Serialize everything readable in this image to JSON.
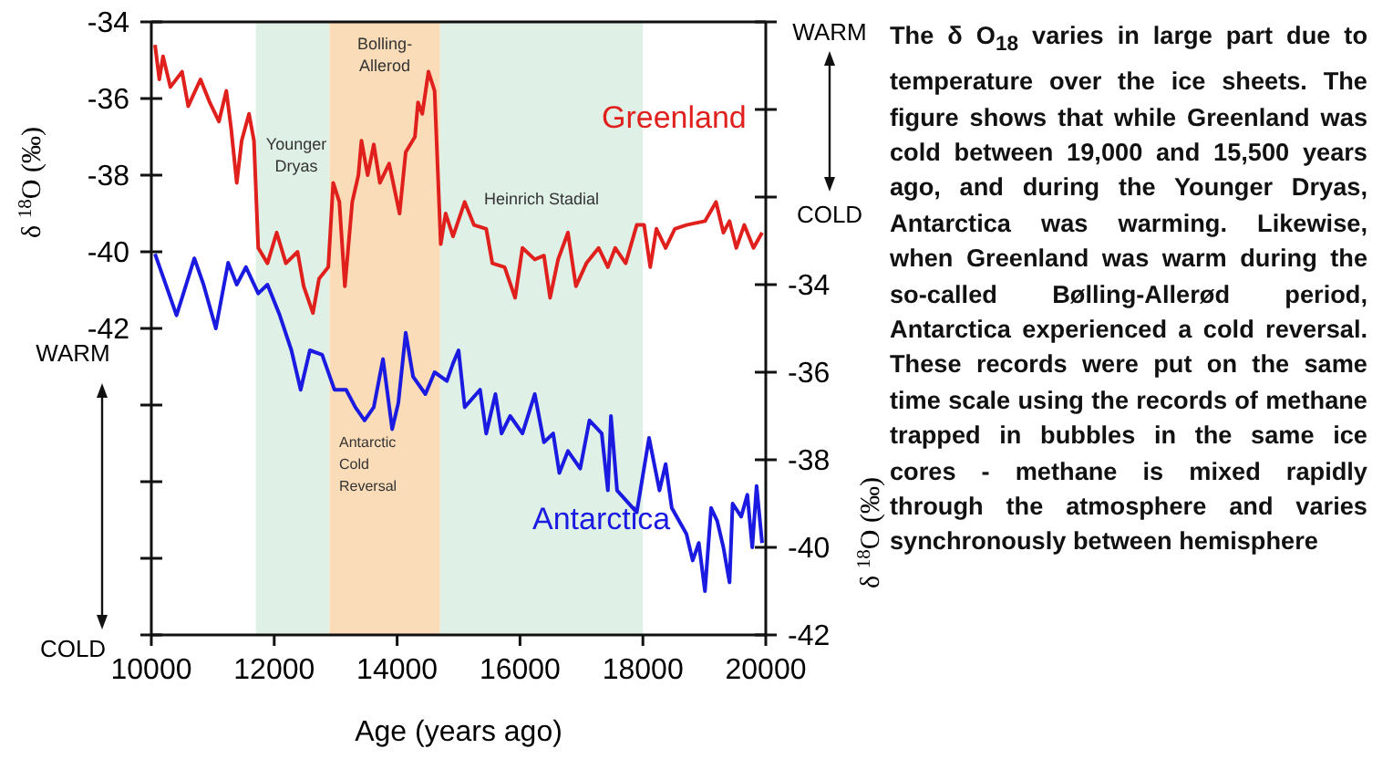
{
  "chart_data": {
    "type": "line",
    "xlabel": "Age (years ago)",
    "ylabel": "δ $^{18}$O (‰)",
    "y2label": "δ $^{18}$O (‰)",
    "xlim": [
      10000,
      20000
    ],
    "xticks": [
      10000,
      12000,
      14000,
      16000,
      18000,
      20000
    ],
    "ylim": [
      -50,
      -34
    ],
    "yticks": [
      -34,
      -36,
      -38,
      -40,
      -42,
      {
        "value": -44,
        "label": null
      },
      {
        "value": -46,
        "label": null
      },
      {
        "value": -48,
        "label": null
      },
      {
        "value": -50,
        "label": null
      }
    ],
    "y2lim": [
      -42,
      -28
    ],
    "y2ticks": [
      -42,
      -40,
      -38,
      -36,
      -34,
      {
        "value": -32,
        "label": null
      },
      {
        "value": -30,
        "label": null
      },
      {
        "value": -28,
        "label": null
      }
    ],
    "grid": false,
    "line_style": "solid",
    "series": [
      {
        "name": "Greenland",
        "color": "#e0201c",
        "x": [
          10060,
          10130,
          10190,
          10310,
          10500,
          10600,
          10800,
          10950,
          11100,
          11220,
          11300,
          11390,
          11470,
          11590,
          11670,
          11740,
          11890,
          12040,
          12190,
          12380,
          12480,
          12630,
          12730,
          12880,
          12960,
          13060,
          13150,
          13270,
          13370,
          13420,
          13520,
          13620,
          13720,
          13870,
          14040,
          14140,
          14290,
          14340,
          14410,
          14510,
          14610,
          14710,
          14790,
          14910,
          15100,
          15250,
          15450,
          15550,
          15750,
          15920,
          16040,
          16240,
          16390,
          16490,
          16620,
          16780,
          16910,
          17080,
          17280,
          17430,
          17550,
          17720,
          17900,
          18020,
          18120,
          18220,
          18370,
          18520,
          18710,
          19010,
          19190,
          19310,
          19410,
          19520,
          19650,
          19800,
          19940
        ],
        "values": [
          -34.6,
          -35.5,
          -34.9,
          -35.7,
          -35.3,
          -36.2,
          -35.5,
          -36.1,
          -36.6,
          -35.8,
          -36.8,
          -38.2,
          -37.1,
          -36.4,
          -37.1,
          -39.9,
          -40.3,
          -39.5,
          -40.3,
          -40.0,
          -40.9,
          -41.6,
          -40.7,
          -40.4,
          -38.2,
          -38.7,
          -40.9,
          -38.7,
          -38.0,
          -37.1,
          -38.0,
          -37.2,
          -38.2,
          -37.7,
          -39.0,
          -37.4,
          -37.0,
          -36.1,
          -36.4,
          -35.3,
          -35.8,
          -39.8,
          -39.0,
          -39.6,
          -38.7,
          -39.3,
          -39.4,
          -40.3,
          -40.4,
          -41.2,
          -39.9,
          -40.2,
          -40.1,
          -41.2,
          -40.2,
          -39.5,
          -40.9,
          -40.3,
          -39.9,
          -40.4,
          -39.9,
          -40.3,
          -39.3,
          -39.3,
          -40.4,
          -39.4,
          -39.9,
          -39.4,
          -39.3,
          -39.2,
          -38.7,
          -39.5,
          -39.2,
          -39.9,
          -39.3,
          -39.9,
          -39.5
        ]
      },
      {
        "name": "Antarctica",
        "color": "#1a1ae0",
        "axis": "y2",
        "x": [
          10060,
          10210,
          10410,
          10500,
          10700,
          10850,
          11050,
          11250,
          11390,
          11540,
          11740,
          11890,
          12090,
          12280,
          12430,
          12580,
          12780,
          12980,
          13170,
          13320,
          13470,
          13620,
          13770,
          13920,
          14020,
          14140,
          14260,
          14460,
          14610,
          14810,
          14910,
          15000,
          15100,
          15350,
          15450,
          15600,
          15700,
          15840,
          16040,
          16240,
          16390,
          16540,
          16640,
          16780,
          16980,
          17130,
          17330,
          17430,
          17480,
          17580,
          17900,
          18100,
          18270,
          18370,
          18470,
          18710,
          18810,
          18910,
          19010,
          19110,
          19210,
          19310,
          19410,
          19460,
          19600,
          19700,
          19780,
          19850,
          19940
        ],
        "values": [
          -33.3,
          -33.9,
          -34.7,
          -34.3,
          -33.4,
          -34.0,
          -35.0,
          -33.5,
          -34.0,
          -33.6,
          -34.2,
          -34.0,
          -34.7,
          -35.5,
          -36.4,
          -35.5,
          -35.6,
          -36.4,
          -36.4,
          -36.8,
          -37.1,
          -36.8,
          -35.7,
          -37.3,
          -36.7,
          -35.1,
          -36.1,
          -36.5,
          -36.0,
          -36.2,
          -35.8,
          -35.5,
          -36.8,
          -36.4,
          -37.4,
          -36.5,
          -37.4,
          -37.0,
          -37.4,
          -36.5,
          -37.6,
          -37.4,
          -38.3,
          -37.8,
          -38.2,
          -37.1,
          -37.4,
          -38.7,
          -37.0,
          -38.7,
          -39.2,
          -37.5,
          -38.7,
          -38.1,
          -39.1,
          -39.7,
          -40.3,
          -39.9,
          -41.0,
          -39.1,
          -39.4,
          -40.0,
          -40.8,
          -39.0,
          -39.3,
          -38.8,
          -40.0,
          -38.6,
          -39.9
        ]
      }
    ],
    "bands": [
      {
        "axis": "x",
        "from": 11700,
        "to": 12900,
        "label": "Younger Dryas",
        "color": "#dff0e6"
      },
      {
        "axis": "x",
        "from": 12900,
        "to": 14700,
        "label": "Bolling-Allerod",
        "color": "#fbdcb8"
      },
      {
        "axis": "x",
        "from": 14700,
        "to": 18000,
        "label": "Heinrich Stadial",
        "color": "#dff0e6"
      }
    ],
    "annotations": [
      "WARM",
      "COLD",
      "WARM",
      "COLD",
      "Antarctic Cold Reversal",
      "The δ O$_{18}$ varies in large part due to temperature over the ice sheets. The figure shows that while Greenland was cold between 19,000 and 15,500 years ago, and during the Younger Dryas, Antarctica was warming. Likewise, when Greenland was warm during the so-called Bølling-Allerød period, Antarctica experienced a cold reversal. These records were put on the same time scale using the records of methane  trapped in bubbles in the same ice cores - methane is mixed rapidly through the atmosphere and varies synchronously between hemisphere"
    ]
  }
}
